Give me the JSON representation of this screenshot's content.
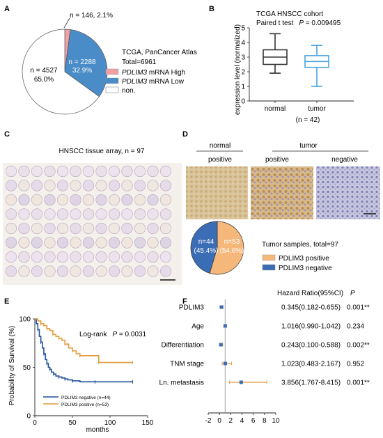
{
  "panels": {
    "A": {
      "letter": "A",
      "legend_title": "TCGA, PanCancer Atlas",
      "legend_total": "Total=6961",
      "legend_items": [
        {
          "gene": "PDLIM3",
          "label": " mRNA High",
          "color": "#f2a0a4"
        },
        {
          "gene": "PDLIM3",
          "label": " mRNA Low",
          "color": "#4a8cc8"
        },
        {
          "gene": "",
          "label": "non.",
          "color": "#ffffff"
        }
      ],
      "callout_top": "n = 146, 2.1%",
      "label_low_n": "n = 2288",
      "label_low_pct": "32.9%",
      "label_non_n": "n = 4527",
      "label_non_pct": "65.0%"
    },
    "B": {
      "letter": "B",
      "title": "TCGA HNSCC cohort",
      "subtitle_test": "Paired t test",
      "subtitle_p_label": "P",
      "subtitle_p_value": " = 0.009495",
      "ylabel": "expression level (normalized)",
      "yticks": [
        "0",
        "1",
        "2",
        "3",
        "4",
        "5"
      ],
      "xticks": [
        "normal",
        "tumor"
      ],
      "n_note": "(n = 42)"
    },
    "C": {
      "letter": "C",
      "title": "HNSCC tissue array, n = 97"
    },
    "D": {
      "letter": "D",
      "header_normal": "normal",
      "header_tumor": "tumor",
      "sub_positive_1": "positive",
      "sub_positive_2": "positive",
      "sub_negative": "negative",
      "pie_neg_n": "n=44",
      "pie_neg_pct": "(45.4%)",
      "pie_pos_n": "n=53",
      "pie_pos_pct": "(54.6%)",
      "legend_title": "Tumor samples, total=97",
      "legend_items": [
        {
          "label": "PDLIM3 positive",
          "color": "#f5b77a"
        },
        {
          "label": "PDLIM3 negative",
          "color": "#3a6db5"
        }
      ]
    },
    "E": {
      "letter": "E",
      "logrank_label": "Log-rank",
      "p_label": "P",
      "p_value": " = 0.0031",
      "ylabel": "Probability of Survival (%)",
      "xlabel": "months",
      "yticks": [
        "0",
        "50",
        "100"
      ],
      "xticks": [
        "0",
        "50",
        "100",
        "150"
      ],
      "legend": [
        {
          "label": "PDLIM3 negative (n=44)",
          "color": "#1f4e9a"
        },
        {
          "label": "PDLIM3 positive (n=53)",
          "color": "#e39b3c"
        }
      ]
    },
    "F": {
      "letter": "F",
      "header_hr": "Hazard Ratio(95%CI)",
      "header_p": "P",
      "xticks": [
        "-2",
        "0",
        "2",
        "4",
        "6",
        "8",
        "10"
      ]
    }
  },
  "chart_data": [
    {
      "type": "pie",
      "panel": "A",
      "title": "TCGA, PanCancer Atlas",
      "labels": [
        "PDLIM3 mRNA High",
        "PDLIM3 mRNA Low",
        "non."
      ],
      "counts": [
        146,
        2288,
        4527
      ],
      "percents": [
        2.1,
        32.9,
        65.0
      ],
      "total": 6961,
      "colors": [
        "#f2a0a4",
        "#4a8cc8",
        "#ffffff"
      ]
    },
    {
      "type": "box",
      "panel": "B",
      "title": "TCGA HNSCC cohort",
      "ylabel": "expression level (normalized)",
      "ylim": [
        0,
        5
      ],
      "categories": [
        "normal",
        "tumor"
      ],
      "boxes": [
        {
          "name": "normal",
          "min": 1.9,
          "q1": 2.5,
          "median": 3.0,
          "q3": 3.5,
          "max": 4.6,
          "color": "#333333"
        },
        {
          "name": "tumor",
          "min": 1.0,
          "q1": 2.3,
          "median": 2.7,
          "q3": 3.1,
          "max": 3.8,
          "color": "#4aa3dc"
        }
      ]
    },
    {
      "type": "pie",
      "panel": "D",
      "title": "Tumor samples, total=97",
      "labels": [
        "PDLIM3 positive",
        "PDLIM3 negative"
      ],
      "counts": [
        53,
        44
      ],
      "percents": [
        54.6,
        45.4
      ],
      "colors": [
        "#f5b77a",
        "#3a6db5"
      ]
    },
    {
      "type": "line",
      "panel": "E",
      "xlabel": "months",
      "ylabel": "Probability of Survival (%)",
      "xlim": [
        0,
        150
      ],
      "ylim": [
        0,
        100
      ],
      "series": [
        {
          "name": "PDLIM3 negative (n=44)",
          "color": "#1f4e9a",
          "x": [
            0,
            2,
            4,
            6,
            8,
            10,
            12,
            14,
            16,
            18,
            20,
            22,
            25,
            28,
            32,
            36,
            40,
            44,
            50,
            60,
            80,
            100,
            130
          ],
          "y": [
            100,
            95,
            89,
            82,
            76,
            70,
            64,
            58,
            54,
            50,
            48,
            45,
            43,
            41,
            40,
            39,
            38,
            37,
            36,
            35,
            35,
            35,
            35
          ]
        },
        {
          "name": "PDLIM3 positive (n=53)",
          "color": "#e39b3c",
          "x": [
            0,
            4,
            8,
            12,
            16,
            20,
            24,
            28,
            32,
            36,
            40,
            45,
            50,
            55,
            60,
            70,
            85,
            100,
            130
          ],
          "y": [
            100,
            98,
            95,
            93,
            90,
            88,
            84,
            82,
            80,
            78,
            74,
            70,
            67,
            64,
            62,
            62,
            55,
            55,
            55
          ]
        }
      ]
    },
    {
      "type": "forest",
      "panel": "F",
      "xlim": [
        -2,
        10
      ],
      "rows": [
        {
          "label": "PDLIM3",
          "hr": 0.345,
          "lo": 0.182,
          "hi": 0.655,
          "hr_text": "0.345(0.182-0.655)",
          "p": "0.001**"
        },
        {
          "label": "Age",
          "hr": 1.016,
          "lo": 0.99,
          "hi": 1.042,
          "hr_text": "1.016(0.990-1.042)",
          "p": "0.234"
        },
        {
          "label": "Differentiation",
          "hr": 0.243,
          "lo": 0.1,
          "hi": 0.588,
          "hr_text": "0.243(0.100-0.588)",
          "p": "0.002**"
        },
        {
          "label": "TNM stage",
          "hr": 1.023,
          "lo": 0.483,
          "hi": 2.167,
          "hr_text": "1.023(0.483-2.167)",
          "p": "0.952"
        },
        {
          "label": "Ln. metastasis",
          "hr": 3.856,
          "lo": 1.767,
          "hi": 8.415,
          "hr_text": "3.856(1.767-8.415)",
          "p": "0.001**"
        }
      ]
    }
  ]
}
